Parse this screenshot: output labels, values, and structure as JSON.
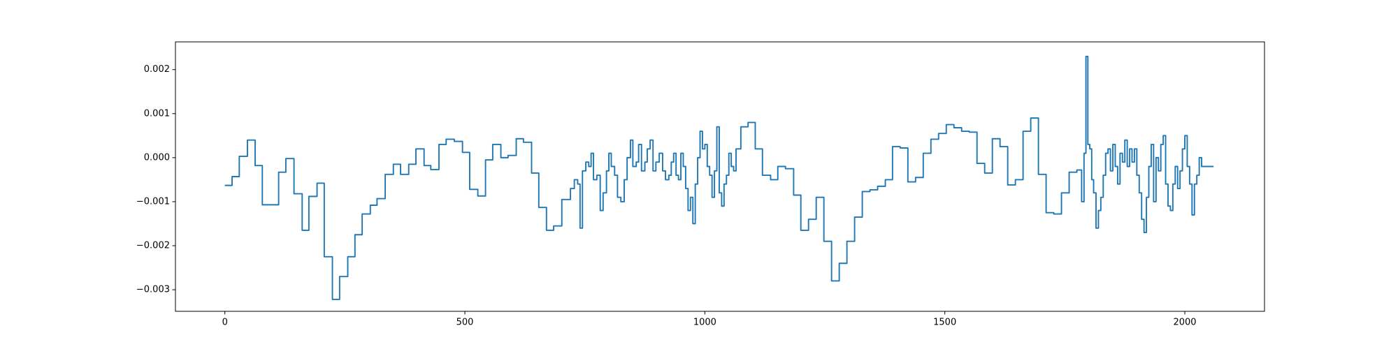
{
  "chart_data": {
    "type": "line",
    "drawstyle": "steps-post",
    "color": "#1f77b4",
    "xlim": [
      -103,
      2166
    ],
    "ylim": [
      -0.00349,
      0.00263
    ],
    "xticks": [
      0,
      500,
      1000,
      1500,
      2000
    ],
    "yticks": [
      {
        "value": -0.003,
        "label": "−0.003"
      },
      {
        "value": -0.002,
        "label": "−0.002"
      },
      {
        "value": -0.001,
        "label": "−0.001"
      },
      {
        "value": 0,
        "label": "0.000"
      },
      0.001,
      0.002
    ],
    "series": [
      {
        "color": "#1f77b4",
        "x": [
          0,
          15,
          30,
          47,
          63,
          78,
          112,
          127,
          144,
          161,
          175,
          192,
          207,
          224,
          239,
          256,
          271,
          286,
          303,
          317,
          334,
          351,
          366,
          383,
          398,
          415,
          429,
          446,
          461,
          478,
          495,
          510,
          527,
          543,
          558,
          575,
          590,
          607,
          622,
          639,
          654,
          670,
          685,
          702,
          720,
          728,
          735,
          740,
          745,
          752,
          758,
          763,
          768,
          775,
          782,
          788,
          795,
          800,
          805,
          812,
          818,
          825,
          832,
          838,
          845,
          850,
          857,
          862,
          868,
          875,
          880,
          886,
          892,
          898,
          905,
          912,
          918,
          925,
          930,
          935,
          940,
          945,
          950,
          955,
          960,
          965,
          970,
          975,
          980,
          985,
          990,
          995,
          1000,
          1005,
          1010,
          1015,
          1020,
          1025,
          1030,
          1035,
          1040,
          1045,
          1050,
          1055,
          1060,
          1065,
          1075,
          1090,
          1105,
          1120,
          1137,
          1152,
          1168,
          1185,
          1200,
          1216,
          1232,
          1248,
          1264,
          1280,
          1296,
          1312,
          1328,
          1344,
          1360,
          1376,
          1391,
          1407,
          1423,
          1439,
          1455,
          1471,
          1487,
          1503,
          1519,
          1535,
          1551,
          1567,
          1583,
          1599,
          1615,
          1631,
          1647,
          1663,
          1679,
          1695,
          1711,
          1727,
          1743,
          1759,
          1775,
          1785,
          1790,
          1794,
          1798,
          1802,
          1806,
          1810,
          1815,
          1820,
          1825,
          1830,
          1835,
          1840,
          1845,
          1850,
          1855,
          1860,
          1865,
          1870,
          1875,
          1880,
          1885,
          1890,
          1895,
          1900,
          1905,
          1910,
          1915,
          1920,
          1925,
          1930,
          1935,
          1940,
          1945,
          1950,
          1955,
          1960,
          1965,
          1970,
          1975,
          1980,
          1985,
          1990,
          1995,
          2000,
          2005,
          2010,
          2015,
          2020,
          2025,
          2030,
          2035,
          2060
        ],
        "values": [
          -0.00063,
          -0.00043,
          3e-05,
          0.0004,
          -0.00018,
          -0.00107,
          -0.00033,
          -2e-05,
          -0.00082,
          -0.00165,
          -0.00088,
          -0.00058,
          -0.00225,
          -0.00322,
          -0.0027,
          -0.00225,
          -0.00175,
          -0.00128,
          -0.00108,
          -0.00093,
          -0.00038,
          -0.00015,
          -0.00038,
          -0.00015,
          0.0002,
          -0.00018,
          -0.00027,
          0.0003,
          0.00042,
          0.00037,
          0.00012,
          -0.00072,
          -0.00087,
          -5e-05,
          0.0003,
          0,
          5e-05,
          0.00043,
          0.00035,
          -0.00035,
          -0.00113,
          -0.00165,
          -0.00155,
          -0.00095,
          -0.0007,
          -0.0005,
          -0.0006,
          -0.0016,
          -0.0003,
          -0.0001,
          -0.0002,
          0.0001,
          -0.0005,
          -0.0004,
          -0.0012,
          -0.0008,
          -0.0003,
          0.0001,
          -0.0002,
          -0.0004,
          -0.0009,
          -0.001,
          -0.0005,
          0,
          0.0004,
          -0.0002,
          -0.0001,
          0.0003,
          -0.0003,
          -0.0001,
          0.0002,
          0.0004,
          -0.0003,
          -0.0001,
          0.0001,
          -0.0003,
          -0.0005,
          -0.0004,
          -0.0001,
          0.0001,
          -0.0004,
          -0.0005,
          0.0001,
          -0.0002,
          -0.0007,
          -0.0012,
          -0.0009,
          -0.0015,
          -0.0006,
          0,
          0.0006,
          0.0002,
          0.0003,
          -0.0002,
          -0.0004,
          -0.0009,
          -0.0003,
          0.0007,
          -0.0008,
          -0.0011,
          -0.0006,
          -0.0004,
          0.0001,
          -0.0002,
          -0.0003,
          0.0002,
          0.0007,
          0.0008,
          0.0002,
          -0.0004,
          -0.0005,
          -0.0002,
          -0.00025,
          -0.00085,
          -0.00165,
          -0.0014,
          -0.0009,
          -0.0019,
          -0.0028,
          -0.0024,
          -0.0019,
          -0.00135,
          -0.00077,
          -0.00073,
          -0.00065,
          -0.0005,
          0.00025,
          0.00022,
          -0.00055,
          -0.00045,
          0.0001,
          0.00042,
          0.00055,
          0.00075,
          0.00068,
          0.0006,
          0.00058,
          -0.00013,
          -0.00035,
          0.00043,
          0.00025,
          -0.00062,
          -0.0005,
          0.0006,
          0.0009,
          -0.00038,
          -0.00125,
          -0.00128,
          -0.0008,
          -0.00033,
          -0.00028,
          -0.001,
          0.0001,
          0.0023,
          0.0003,
          0.0002,
          -0.0005,
          -0.0008,
          -0.0016,
          -0.0012,
          -0.0009,
          -0.0004,
          0.0001,
          0.0002,
          -0.0003,
          0.0003,
          -0.0002,
          -0.0006,
          0.0001,
          -0.0001,
          0.0004,
          -0.0002,
          0.0002,
          -0.0001,
          0.0002,
          -0.0004,
          -0.0008,
          -0.0014,
          -0.0017,
          -0.0009,
          -0.0002,
          0.0003,
          -0.001,
          0,
          -0.0003,
          0.0003,
          0.0005,
          -0.0006,
          -0.0011,
          -0.0012,
          -0.0006,
          -0.0002,
          -0.0007,
          -0.0003,
          0.0002,
          0.0005,
          -0.0002,
          -0.0006,
          -0.0013,
          -0.0006,
          -0.0004,
          0,
          -0.0002,
          -0.0002
        ]
      }
    ]
  }
}
